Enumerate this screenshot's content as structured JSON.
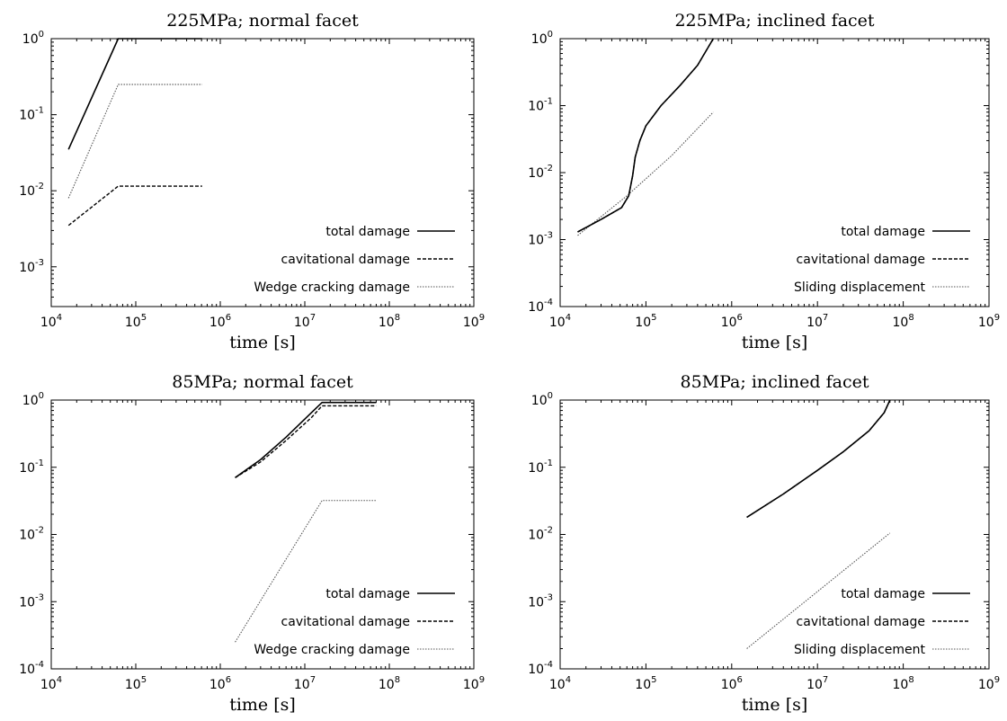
{
  "chart_data": [
    {
      "type": "line",
      "title": "225MPa; normal facet",
      "xlabel": "time [s]",
      "ylabel": "",
      "xscale": "log",
      "yscale": "log",
      "xlim": [
        10000,
        1000000000
      ],
      "ylim": [
        0.0003,
        1
      ],
      "x_ticks": [
        "10^4",
        "10^5",
        "10^6",
        "10^7",
        "10^8",
        "10^9"
      ],
      "y_ticks": [
        "10^-3",
        "10^-2",
        "10^-1",
        "10^0"
      ],
      "legend_position": "bottom-right",
      "series": [
        {
          "name": "total damage",
          "style": "solid",
          "x": [
            16000,
            62000,
            610000
          ],
          "y": [
            0.035,
            1,
            1
          ]
        },
        {
          "name": "cavitational damage",
          "style": "dashed",
          "x": [
            16000,
            62000,
            610000
          ],
          "y": [
            0.0035,
            0.0115,
            0.0115
          ]
        },
        {
          "name": "Wedge cracking damage",
          "style": "dotted",
          "x": [
            16000,
            62000,
            610000
          ],
          "y": [
            0.008,
            0.25,
            0.25
          ]
        }
      ]
    },
    {
      "type": "line",
      "title": "225MPa; inclined facet",
      "xlabel": "time [s]",
      "ylabel": "",
      "xscale": "log",
      "yscale": "log",
      "xlim": [
        10000,
        1000000000
      ],
      "ylim": [
        0.0001,
        1
      ],
      "x_ticks": [
        "10^4",
        "10^5",
        "10^6",
        "10^7",
        "10^8",
        "10^9"
      ],
      "y_ticks": [
        "10^-4",
        "10^-3",
        "10^-2",
        "10^-1",
        "10^0"
      ],
      "legend_position": "bottom-right",
      "series": [
        {
          "name": "total damage",
          "style": "solid",
          "x": [
            16000,
            30000,
            52000,
            63000,
            70000,
            75000,
            85000,
            100000,
            150000,
            250000,
            400000,
            610000
          ],
          "y": [
            0.0013,
            0.002,
            0.003,
            0.0045,
            0.009,
            0.017,
            0.03,
            0.05,
            0.1,
            0.2,
            0.4,
            1
          ]
        },
        {
          "name": "cavitational damage",
          "style": "dashed",
          "x": [
            16000,
            30000,
            52000,
            63000,
            70000,
            75000,
            85000,
            100000,
            150000,
            250000,
            400000,
            610000
          ],
          "y": [
            0.0013,
            0.002,
            0.003,
            0.0045,
            0.009,
            0.017,
            0.03,
            0.05,
            0.1,
            0.2,
            0.4,
            1
          ]
        },
        {
          "name": "Sliding displacement",
          "style": "dotted",
          "x": [
            16000,
            60000,
            200000,
            610000
          ],
          "y": [
            0.00115,
            0.0045,
            0.018,
            0.08
          ]
        }
      ]
    },
    {
      "type": "line",
      "title": "85MPa; normal facet",
      "xlabel": "time [s]",
      "ylabel": "",
      "xscale": "log",
      "yscale": "log",
      "xlim": [
        10000,
        1000000000
      ],
      "ylim": [
        0.0001,
        1
      ],
      "x_ticks": [
        "10^4",
        "10^5",
        "10^6",
        "10^7",
        "10^8",
        "10^9"
      ],
      "y_ticks": [
        "10^-4",
        "10^-3",
        "10^-2",
        "10^-1",
        "10^0"
      ],
      "legend_position": "bottom-right",
      "series": [
        {
          "name": "total damage",
          "style": "solid",
          "x": [
            1500000,
            3000000,
            6000000,
            12000000,
            16000000,
            70000000
          ],
          "y": [
            0.07,
            0.13,
            0.28,
            0.65,
            0.92,
            0.92
          ]
        },
        {
          "name": "cavitational damage",
          "style": "dashed",
          "x": [
            1500000,
            3000000,
            6000000,
            12000000,
            16000000,
            70000000
          ],
          "y": [
            0.07,
            0.12,
            0.25,
            0.55,
            0.82,
            0.82
          ]
        },
        {
          "name": "Wedge cracking damage",
          "style": "dotted",
          "x": [
            1500000,
            16000000,
            70000000
          ],
          "y": [
            0.00025,
            0.032,
            0.032
          ]
        }
      ]
    },
    {
      "type": "line",
      "title": "85MPa; inclined facet",
      "xlabel": "time [s]",
      "ylabel": "",
      "xscale": "log",
      "yscale": "log",
      "xlim": [
        10000,
        1000000000
      ],
      "ylim": [
        0.0001,
        1
      ],
      "x_ticks": [
        "10^4",
        "10^5",
        "10^6",
        "10^7",
        "10^8",
        "10^9"
      ],
      "y_ticks": [
        "10^-4",
        "10^-3",
        "10^-2",
        "10^-1",
        "10^0"
      ],
      "legend_position": "bottom-right",
      "series": [
        {
          "name": "total damage",
          "style": "solid",
          "x": [
            1500000,
            4000000,
            10000000,
            20000000,
            40000000,
            60000000,
            70000000
          ],
          "y": [
            0.018,
            0.04,
            0.09,
            0.17,
            0.35,
            0.65,
            1
          ]
        },
        {
          "name": "cavitational damage",
          "style": "dashed",
          "x": [
            1500000,
            4000000,
            10000000,
            20000000,
            40000000,
            60000000,
            70000000
          ],
          "y": [
            0.018,
            0.04,
            0.09,
            0.17,
            0.35,
            0.65,
            1
          ]
        },
        {
          "name": "Sliding displacement",
          "style": "dotted",
          "x": [
            1500000,
            70000000
          ],
          "y": [
            0.0002,
            0.0105
          ]
        }
      ]
    }
  ]
}
